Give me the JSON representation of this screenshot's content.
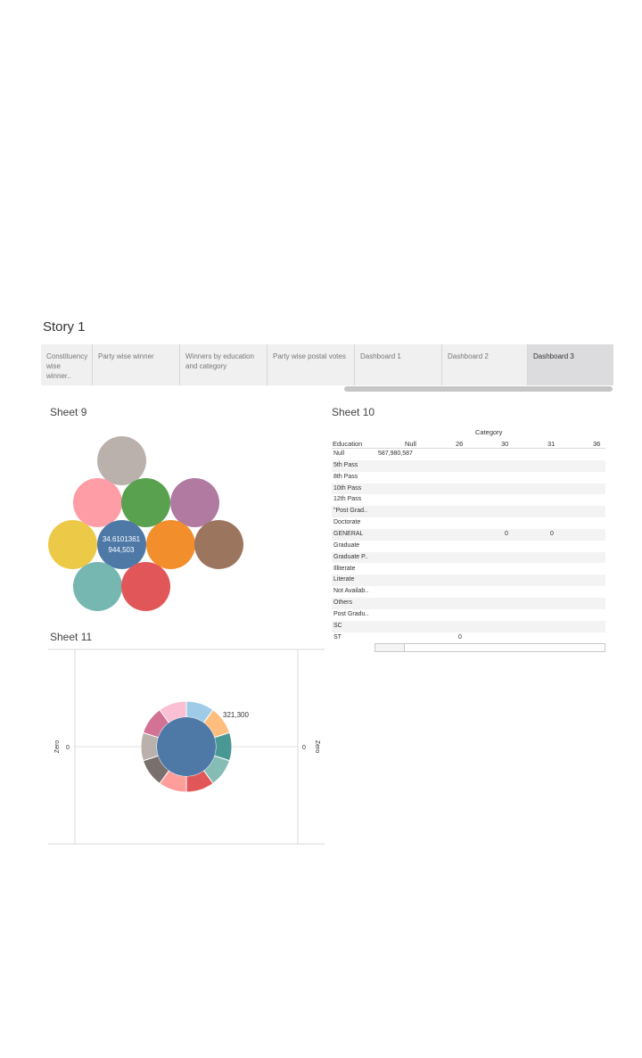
{
  "story": {
    "title": "Story 1",
    "tabs": [
      {
        "label": "Constituency wise winner..",
        "active": false
      },
      {
        "label": "Party wise winner",
        "active": false
      },
      {
        "label": "Winners by education and category",
        "active": false
      },
      {
        "label": "Party wise postal votes",
        "active": false
      },
      {
        "label": "Dashboard 1",
        "active": false
      },
      {
        "label": "Dashboard 2",
        "active": false
      },
      {
        "label": "Dashboard 3",
        "active": true
      }
    ]
  },
  "sheet9": {
    "title": "Sheet 9",
    "label_line1": "34.6101361",
    "label_line2": "944,503",
    "colors": [
      "#bab0ac",
      "#ff9da7",
      "#59a14f",
      "#b07aa1",
      "#edc948",
      "#4e79a7",
      "#f28e2b",
      "#9c755f",
      "#76b7b2",
      "#e15759"
    ]
  },
  "sheet10": {
    "title": "Sheet 10",
    "category_header": "Category",
    "education_header": "Education",
    "columns": [
      "Null",
      "26",
      "30",
      "31",
      "36"
    ],
    "rows": [
      {
        "label": "Null",
        "cells": [
          "587,980,587",
          "",
          "",
          "",
          ""
        ]
      },
      {
        "label": "5th Pass",
        "cells": [
          "",
          "",
          "",
          "",
          ""
        ]
      },
      {
        "label": "8th Pass",
        "cells": [
          "",
          "",
          "",
          "",
          ""
        ]
      },
      {
        "label": "10th Pass",
        "cells": [
          "",
          "",
          "",
          "",
          ""
        ]
      },
      {
        "label": "12th Pass",
        "cells": [
          "",
          "",
          "",
          "",
          ""
        ]
      },
      {
        "label": "\"Post Grad..",
        "cells": [
          "",
          "",
          "",
          "",
          ""
        ]
      },
      {
        "label": "Doctorate",
        "cells": [
          "",
          "",
          "",
          "",
          ""
        ]
      },
      {
        "label": "GENERAL",
        "cells": [
          "",
          "",
          "0",
          "0",
          ""
        ]
      },
      {
        "label": "Graduate",
        "cells": [
          "",
          "",
          "",
          "",
          ""
        ]
      },
      {
        "label": "Graduate P..",
        "cells": [
          "",
          "",
          "",
          "",
          ""
        ]
      },
      {
        "label": "Illiterate",
        "cells": [
          "",
          "",
          "",
          "",
          ""
        ]
      },
      {
        "label": "Literate",
        "cells": [
          "",
          "",
          "",
          "",
          ""
        ]
      },
      {
        "label": "Not Availab..",
        "cells": [
          "",
          "",
          "",
          "",
          ""
        ]
      },
      {
        "label": "Others",
        "cells": [
          "",
          "",
          "",
          "",
          ""
        ]
      },
      {
        "label": "Post Gradu..",
        "cells": [
          "",
          "",
          "",
          "",
          ""
        ]
      },
      {
        "label": "SC",
        "cells": [
          "",
          "",
          "",
          "",
          ""
        ]
      },
      {
        "label": "ST",
        "cells": [
          "",
          "0",
          "",
          "",
          ""
        ]
      }
    ]
  },
  "sheet11": {
    "title": "Sheet 11",
    "axis_label_left": "Zero",
    "axis_label_right": "Zero",
    "tick_left": "0",
    "tick_right": "0",
    "donut_label": "321,300",
    "center_color": "#4e79a7",
    "segment_colors": [
      "#a0cbe8",
      "#ffbe7d",
      "#499894",
      "#86bcb6",
      "#e15759",
      "#ff9d9a",
      "#79706e",
      "#bab0ac",
      "#d37295",
      "#fabfd2"
    ]
  }
}
